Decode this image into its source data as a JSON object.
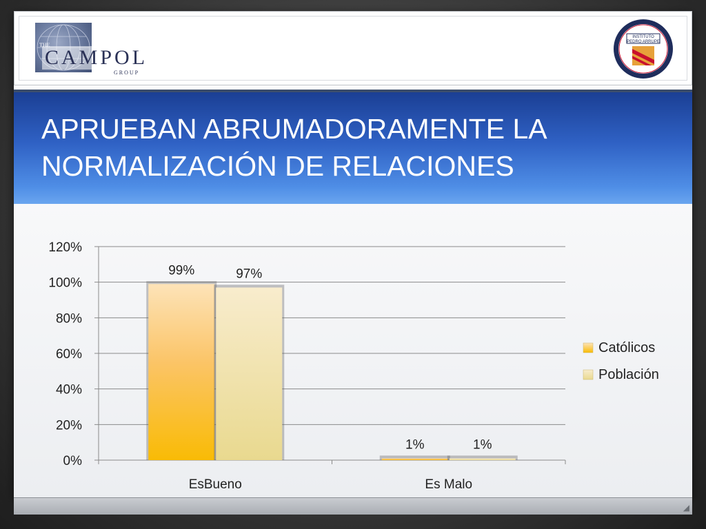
{
  "slide": {
    "title_line1": "APRUEBAN ABRUMADORAMENTE LA",
    "title_line2": "NORMALIZACIÓN DE RELACIONES",
    "colors": {
      "title_band_dark": "#1b3f94",
      "title_band_light": "#6aa5ef",
      "catolicos": "#f7b92a",
      "poblacion": "#ece2a8"
    },
    "logos": {
      "left_text": "CAMPOL",
      "right_text": "INSTITUTO PEDRO ARRUPE"
    }
  },
  "chart_data": {
    "type": "bar",
    "categories": [
      "EsBueno",
      "Es Malo"
    ],
    "series": [
      {
        "name": "Católicos",
        "values": [
          99,
          1
        ],
        "labels": [
          "99%",
          "1%"
        ]
      },
      {
        "name": "Población",
        "values": [
          97,
          1
        ],
        "labels": [
          "97%",
          "1%"
        ]
      }
    ],
    "ylim": [
      0,
      120
    ],
    "yticks": [
      0,
      20,
      40,
      60,
      80,
      100,
      120
    ],
    "ytick_labels": [
      "0%",
      "20%",
      "40%",
      "60%",
      "80%",
      "100%",
      "120%"
    ],
    "grid": true,
    "legend": "right",
    "xlabel": "",
    "ylabel": ""
  }
}
